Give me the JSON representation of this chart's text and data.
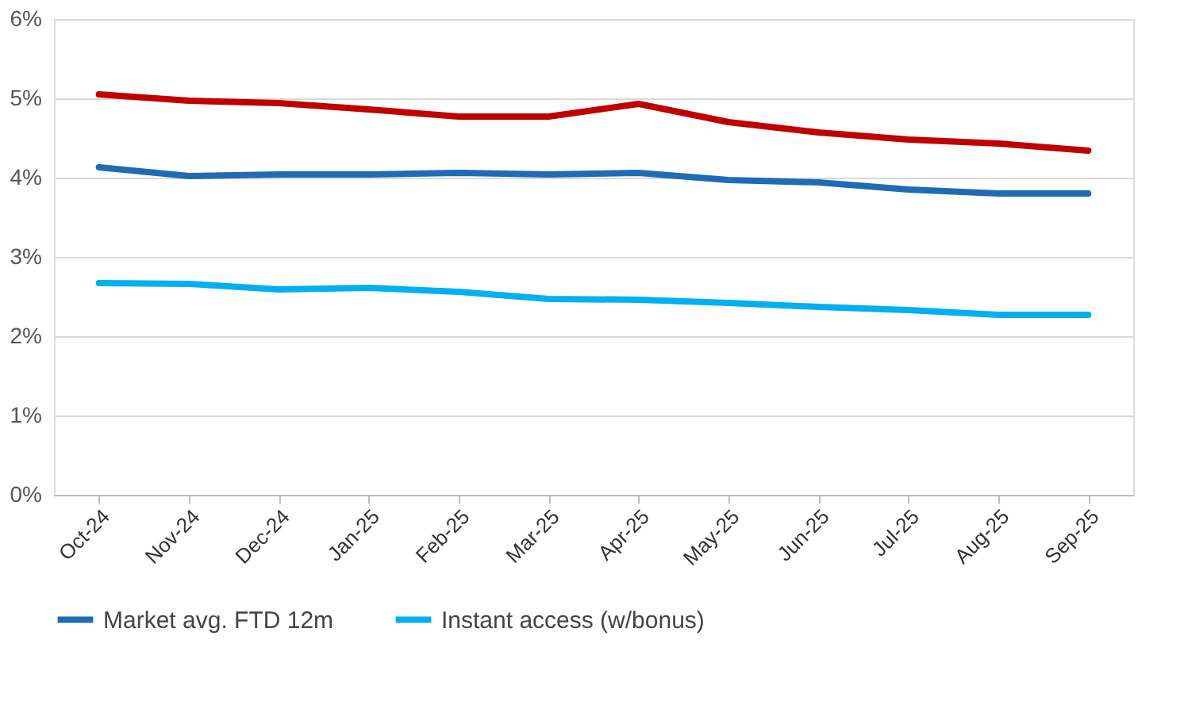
{
  "chart_data": {
    "type": "line",
    "categories": [
      "Oct-24",
      "Nov-24",
      "Dec-24",
      "Jan-25",
      "Feb-25",
      "Mar-25",
      "Apr-25",
      "May-25",
      "Jun-25",
      "Jul-25",
      "Aug-25",
      "Sep-25"
    ],
    "series": [
      {
        "name": "Market avg. FTD 12m",
        "color": "#1f6bb5",
        "values": [
          4.13,
          4.02,
          4.04,
          4.04,
          4.06,
          4.04,
          4.06,
          3.97,
          3.94,
          3.85,
          3.8,
          3.8
        ]
      },
      {
        "name": "Instant access (w/bonus)",
        "color": "#00b0f0",
        "values": [
          2.67,
          2.66,
          2.59,
          2.61,
          2.56,
          2.47,
          2.46,
          2.42,
          2.37,
          2.33,
          2.27,
          2.27
        ]
      },
      {
        "color": "#c00000",
        "values": [
          5.05,
          4.97,
          4.94,
          4.86,
          4.77,
          4.77,
          4.93,
          4.7,
          4.57,
          4.48,
          4.43,
          4.34
        ]
      }
    ],
    "ylim": [
      0,
      6
    ],
    "yticks": [
      {
        "value": 0,
        "label": "0%"
      },
      {
        "value": 1,
        "label": "1%"
      },
      {
        "value": 2,
        "label": "2%"
      },
      {
        "value": 3,
        "label": "3%"
      },
      {
        "value": 4,
        "label": "4%"
      },
      {
        "value": 5,
        "label": "5%"
      },
      {
        "value": 6,
        "label": "6%"
      }
    ],
    "grid": "y",
    "legend": "bottom",
    "marker": "none",
    "line_style": "solid"
  }
}
